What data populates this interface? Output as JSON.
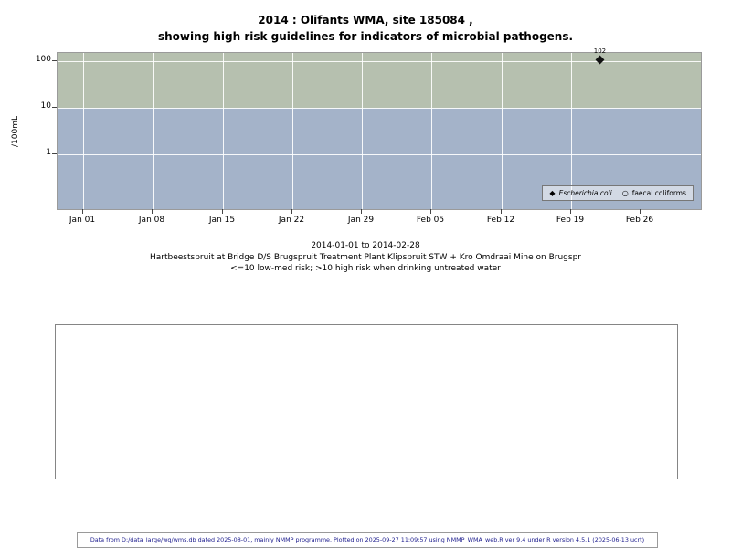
{
  "title": {
    "line1": "2014 : Olifants WMA, site 185084 ,",
    "line2": "showing high risk guidelines for indicators of microbial pathogens."
  },
  "chart_data": {
    "type": "scatter",
    "title": "2014 : Olifants WMA, site 185084 , showing high risk guidelines for indicators of microbial pathogens.",
    "ylabel": "/100mL",
    "y_scale": "log",
    "ylim": [
      0.07,
      150
    ],
    "y_ticks": [
      100,
      10,
      1
    ],
    "x_ticks": [
      "Jan 01",
      "Jan 08",
      "Jan 15",
      "Jan 22",
      "Jan 29",
      "Feb 05",
      "Feb 12",
      "Feb 19",
      "Feb 26"
    ],
    "x_start": "2014-01-01",
    "x_tick_interval_days": 7,
    "grid": true,
    "grid_color": "#ffffff",
    "risk_threshold": 10,
    "bands": [
      {
        "label": "high risk (>10)",
        "color": "#b6c0af"
      },
      {
        "label": "low-med risk (<=10)",
        "color": "#a4b3c9"
      }
    ],
    "series": [
      {
        "name": "Escherichia coli",
        "marker": "filled-diamond",
        "color": "#111111",
        "points": [
          {
            "date": "2014-02-22",
            "value": 102,
            "label": "102"
          }
        ]
      },
      {
        "name": "faecal coliforms",
        "marker": "open-circle",
        "color": "#111111",
        "points": []
      }
    ],
    "legend_position": "bottom-right"
  },
  "caption": {
    "line1": "2014-01-01 to 2014-02-28",
    "line2": "Hartbeestspruit at Bridge D/S Brugspruit Treatment Plant Klipspruit STW + Kro Omdraai Mine on Brugspr",
    "line3": "<=10 low-med risk; >10 high risk when drinking untreated water"
  },
  "footer": {
    "text": "Data from D:/data_large/wq/wms.db dated 2025-08-01, mainly NMMP programme. Plotted on 2025-09-27 11:09:57 using NMMP_WMA_web.R ver 9.4 under R version 4.5.1 (2025-06-13 ucrt)",
    "color": "#1a1a8c"
  }
}
